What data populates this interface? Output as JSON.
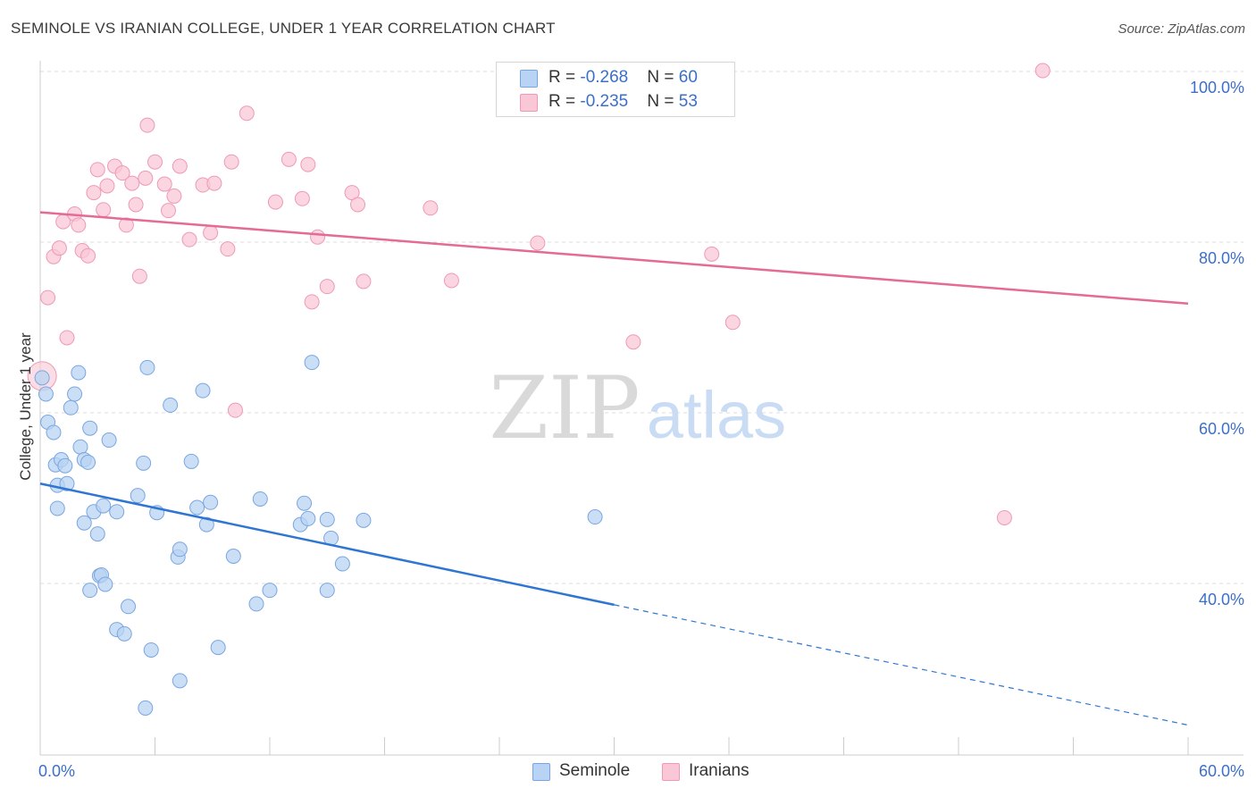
{
  "title": "SEMINOLE VS IRANIAN COLLEGE, UNDER 1 YEAR CORRELATION CHART",
  "source": "Source: ZipAtlas.com",
  "watermark": {
    "zip": "ZIP",
    "atlas": "atlas"
  },
  "legend": {
    "rows": [
      {
        "r_label": "R = ",
        "r_value": "-0.268",
        "n_label": "N = ",
        "n_value": "60"
      },
      {
        "r_label": "R = ",
        "r_value": "-0.235",
        "n_label": "N = ",
        "n_value": "53"
      }
    ]
  },
  "colors": {
    "seminole_fill": "#b8d3f3",
    "seminole_stroke": "#7aa6e0",
    "seminole_line": "#2f76d2",
    "iranians_fill": "#f9c7d6",
    "iranians_stroke": "#ee9ab5",
    "iranians_line": "#e36b95",
    "axis_label_color": "#3b6fc9",
    "grid": "#dddddd"
  },
  "chart_data": {
    "type": "scatter",
    "title": "SEMINOLE VS IRANIAN COLLEGE, UNDER 1 YEAR CORRELATION CHART",
    "xlabel": "",
    "ylabel": "College, Under 1 year",
    "xlim": [
      0,
      60
    ],
    "ylim": [
      20,
      102
    ],
    "x_tick_labels": [
      "0.0%",
      "60.0%"
    ],
    "y_ticks": [
      40,
      60,
      80,
      100
    ],
    "y_tick_labels": [
      "40.0%",
      "60.0%",
      "80.0%",
      "100.0%"
    ],
    "grid": true,
    "legend_position": "top-center",
    "series": [
      {
        "name": "Seminole",
        "r": -0.268,
        "n": 60,
        "trend": {
          "x0": 0,
          "y0": 51.7,
          "x1": 30,
          "y1": 37.5,
          "dashed_to_x": 60,
          "dashed_to_y": 23.4
        },
        "points": [
          [
            0.1,
            64.1
          ],
          [
            0.3,
            62.2
          ],
          [
            0.4,
            58.9
          ],
          [
            0.7,
            57.7
          ],
          [
            0.8,
            53.9
          ],
          [
            1.1,
            54.5
          ],
          [
            1.3,
            53.8
          ],
          [
            0.9,
            51.5
          ],
          [
            1.4,
            51.7
          ],
          [
            0.9,
            48.8
          ],
          [
            1.6,
            60.6
          ],
          [
            1.8,
            62.2
          ],
          [
            2.0,
            64.7
          ],
          [
            2.1,
            56.0
          ],
          [
            2.3,
            54.5
          ],
          [
            2.5,
            54.2
          ],
          [
            2.6,
            58.2
          ],
          [
            2.3,
            47.1
          ],
          [
            2.8,
            48.4
          ],
          [
            3.0,
            45.8
          ],
          [
            3.3,
            49.1
          ],
          [
            3.6,
            56.8
          ],
          [
            4.0,
            48.4
          ],
          [
            3.1,
            40.9
          ],
          [
            3.2,
            41.0
          ],
          [
            3.4,
            39.9
          ],
          [
            2.6,
            39.2
          ],
          [
            4.6,
            37.3
          ],
          [
            4.0,
            34.6
          ],
          [
            4.4,
            34.1
          ],
          [
            5.1,
            50.3
          ],
          [
            5.4,
            54.1
          ],
          [
            6.1,
            48.3
          ],
          [
            5.8,
            32.2
          ],
          [
            6.8,
            60.9
          ],
          [
            7.2,
            43.1
          ],
          [
            7.3,
            44.0
          ],
          [
            7.9,
            54.3
          ],
          [
            8.2,
            48.9
          ],
          [
            8.5,
            62.6
          ],
          [
            8.9,
            49.5
          ],
          [
            8.7,
            46.9
          ],
          [
            5.5,
            25.4
          ],
          [
            7.3,
            28.6
          ],
          [
            9.3,
            32.5
          ],
          [
            10.1,
            43.2
          ],
          [
            11.3,
            37.6
          ],
          [
            11.5,
            49.9
          ],
          [
            12.0,
            39.2
          ],
          [
            14.2,
            65.9
          ],
          [
            13.6,
            46.9
          ],
          [
            13.8,
            49.4
          ],
          [
            15.0,
            47.5
          ],
          [
            14.0,
            47.6
          ],
          [
            15.2,
            45.3
          ],
          [
            15.0,
            39.2
          ],
          [
            15.8,
            42.3
          ],
          [
            16.9,
            47.4
          ],
          [
            29.0,
            47.8
          ],
          [
            5.6,
            65.3
          ]
        ]
      },
      {
        "name": "Iranians",
        "r": -0.235,
        "n": 53,
        "trend": {
          "x0": 0,
          "y0": 83.5,
          "x1": 60,
          "y1": 72.8
        },
        "points": [
          [
            0.1,
            64.3
          ],
          [
            0.4,
            73.5
          ],
          [
            0.7,
            78.3
          ],
          [
            1.0,
            79.3
          ],
          [
            1.2,
            82.4
          ],
          [
            1.4,
            68.8
          ],
          [
            1.8,
            83.3
          ],
          [
            2.0,
            82.0
          ],
          [
            2.2,
            79.0
          ],
          [
            2.5,
            78.4
          ],
          [
            2.8,
            85.8
          ],
          [
            3.0,
            88.5
          ],
          [
            3.3,
            83.8
          ],
          [
            3.5,
            86.6
          ],
          [
            3.9,
            88.9
          ],
          [
            4.3,
            88.1
          ],
          [
            4.5,
            82.0
          ],
          [
            4.8,
            86.9
          ],
          [
            5.0,
            84.4
          ],
          [
            5.2,
            76.0
          ],
          [
            5.5,
            87.5
          ],
          [
            5.6,
            93.7
          ],
          [
            6.0,
            89.4
          ],
          [
            6.5,
            86.8
          ],
          [
            6.7,
            83.7
          ],
          [
            7.0,
            85.4
          ],
          [
            7.3,
            88.9
          ],
          [
            7.8,
            80.3
          ],
          [
            8.5,
            86.7
          ],
          [
            8.9,
            81.1
          ],
          [
            9.1,
            86.9
          ],
          [
            9.8,
            79.2
          ],
          [
            10.0,
            89.4
          ],
          [
            10.2,
            60.3
          ],
          [
            10.8,
            95.1
          ],
          [
            12.3,
            84.7
          ],
          [
            13.0,
            89.7
          ],
          [
            13.7,
            85.1
          ],
          [
            14.0,
            89.1
          ],
          [
            14.2,
            73.0
          ],
          [
            14.5,
            80.6
          ],
          [
            15.0,
            74.8
          ],
          [
            16.3,
            85.8
          ],
          [
            16.6,
            84.4
          ],
          [
            16.9,
            75.4
          ],
          [
            20.4,
            84.0
          ],
          [
            21.5,
            75.5
          ],
          [
            26.0,
            79.9
          ],
          [
            31.0,
            68.3
          ],
          [
            35.1,
            78.6
          ],
          [
            36.2,
            70.6
          ],
          [
            50.4,
            47.7
          ],
          [
            52.4,
            100.1
          ]
        ]
      }
    ]
  }
}
